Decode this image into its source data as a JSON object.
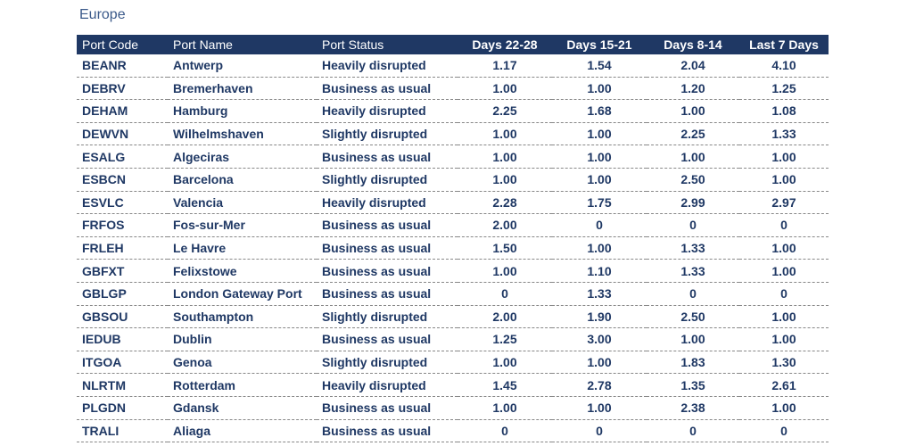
{
  "title": "Europe",
  "table": {
    "header": [
      "Port Code",
      "Port Name",
      "Port Status",
      "Days 22-28",
      "Days 15-21",
      "Days 8-14",
      "Last 7 Days"
    ],
    "rows": [
      [
        "BEANR",
        "Antwerp",
        "Heavily disrupted",
        "1.17",
        "1.54",
        "2.04",
        "4.10"
      ],
      [
        "DEBRV",
        "Bremerhaven",
        "Business as usual",
        "1.00",
        "1.00",
        "1.20",
        "1.25"
      ],
      [
        "DEHAM",
        "Hamburg",
        "Heavily disrupted",
        "2.25",
        "1.68",
        "1.00",
        "1.08"
      ],
      [
        "DEWVN",
        "Wilhelmshaven",
        "Slightly disrupted",
        "1.00",
        "1.00",
        "2.25",
        "1.33"
      ],
      [
        "ESALG",
        "Algeciras",
        "Business as usual",
        "1.00",
        "1.00",
        "1.00",
        "1.00"
      ],
      [
        "ESBCN",
        "Barcelona",
        "Slightly disrupted",
        "1.00",
        "1.00",
        "2.50",
        "1.00"
      ],
      [
        "ESVLC",
        "Valencia",
        "Heavily disrupted",
        "2.28",
        "1.75",
        "2.99",
        "2.97"
      ],
      [
        "FRFOS",
        "Fos-sur-Mer",
        "Business as usual",
        "2.00",
        "0",
        "0",
        "0"
      ],
      [
        "FRLEH",
        "Le Havre",
        "Business as usual",
        "1.50",
        "1.00",
        "1.33",
        "1.00"
      ],
      [
        "GBFXT",
        "Felixstowe",
        "Business as usual",
        "1.00",
        "1.10",
        "1.33",
        "1.00"
      ],
      [
        "GBLGP",
        "London Gateway Port",
        "Business as usual",
        "0",
        "1.33",
        "0",
        "0"
      ],
      [
        "GBSOU",
        "Southampton",
        "Slightly disrupted",
        "2.00",
        "1.90",
        "2.50",
        "1.00"
      ],
      [
        "IEDUB",
        "Dublin",
        "Business as usual",
        "1.25",
        "3.00",
        "1.00",
        "1.00"
      ],
      [
        "ITGOA",
        "Genoa",
        "Slightly disrupted",
        "1.00",
        "1.00",
        "1.83",
        "1.30"
      ],
      [
        "NLRTM",
        "Rotterdam",
        "Heavily disrupted",
        "1.45",
        "2.78",
        "1.35",
        "2.61"
      ],
      [
        "PLGDN",
        "Gdansk",
        "Business as usual",
        "1.00",
        "1.00",
        "2.38",
        "1.00"
      ],
      [
        "TRALI",
        "Aliaga",
        "Business as usual",
        "0",
        "0",
        "0",
        "0"
      ]
    ]
  }
}
